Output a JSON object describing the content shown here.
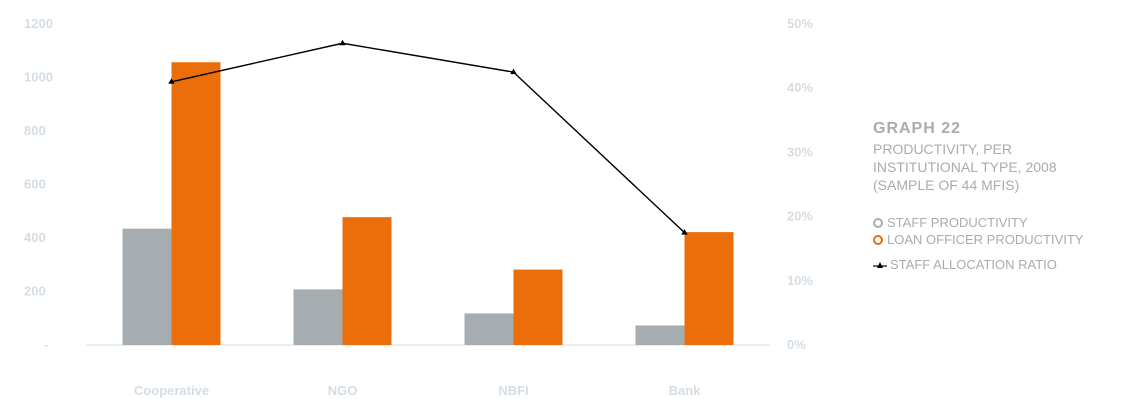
{
  "chart_data": {
    "type": "bar",
    "categories": [
      "Cooperative",
      "NGO",
      "NBFI",
      "Bank"
    ],
    "series": [
      {
        "name": "STAFF PRODUCTIVITY",
        "type": "bar",
        "axis": "left",
        "color": "#a6adb1",
        "values": [
          435,
          208,
          118,
          73
        ]
      },
      {
        "name": "LOAN OFFICER PRODUCTIVITY",
        "type": "bar",
        "axis": "left",
        "color": "#eb6e0b",
        "values": [
          1057,
          478,
          282,
          422
        ]
      },
      {
        "name": "STAFF ALLOCATION RATIO",
        "type": "line",
        "axis": "right",
        "color": "#000000",
        "values": [
          41,
          47,
          42.5,
          17.5
        ]
      }
    ],
    "y_left": {
      "min": 0,
      "max": 1200,
      "ticks": [
        "-",
        "200",
        "400",
        "600",
        "800",
        "1000",
        "1200"
      ]
    },
    "y_right": {
      "min": 0,
      "max": 50,
      "ticks": [
        "0%",
        "10%",
        "20%",
        "30%",
        "40%",
        "50%"
      ]
    },
    "grid": false
  },
  "title": {
    "label": "GRAPH 22",
    "subtitle_lines": [
      "PRODUCTIVITY, PER",
      "INSTITUTIONAL TYPE, 2008",
      "(SAMPLE OF 44 MFIS)"
    ]
  },
  "legend": [
    {
      "label": "STAFF PRODUCTIVITY",
      "marker": "circle",
      "color": "#a6adb1"
    },
    {
      "label": "LOAN OFFICER PRODUCTIVITY",
      "marker": "circle",
      "color": "#eb6e0b"
    },
    {
      "label": "STAFF ALLOCATION RATIO",
      "marker": "line-triangle",
      "color": "#000000"
    }
  ]
}
